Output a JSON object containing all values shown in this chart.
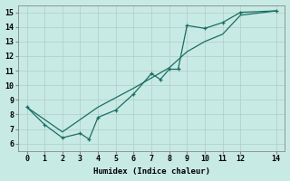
{
  "xlabel": "Humidex (Indice chaleur)",
  "ylabel": "",
  "bg_color": "#c8eae4",
  "grid_color": "#b0ccc8",
  "line_color": "#1a6e64",
  "xlim": [
    -0.5,
    14.5
  ],
  "ylim": [
    5.5,
    15.5
  ],
  "xticks": [
    0,
    1,
    2,
    3,
    4,
    5,
    6,
    7,
    8,
    9,
    10,
    11,
    12,
    14
  ],
  "yticks": [
    6,
    7,
    8,
    9,
    10,
    11,
    12,
    13,
    14,
    15
  ],
  "line1_x": [
    0,
    2,
    4,
    6,
    7,
    8,
    9,
    10,
    11,
    12,
    14
  ],
  "line1_y": [
    8.5,
    6.8,
    8.5,
    9.8,
    10.5,
    11.2,
    12.3,
    13.0,
    13.5,
    14.8,
    15.1
  ],
  "line2_x": [
    0,
    1,
    2,
    3,
    3.5,
    4,
    5,
    6,
    7,
    7.5,
    8,
    8.5,
    9,
    10,
    11,
    12,
    14
  ],
  "line2_y": [
    8.5,
    7.3,
    6.4,
    6.7,
    6.3,
    7.8,
    8.3,
    9.4,
    10.8,
    10.4,
    11.1,
    11.1,
    14.1,
    13.9,
    14.3,
    15.0,
    15.1
  ]
}
